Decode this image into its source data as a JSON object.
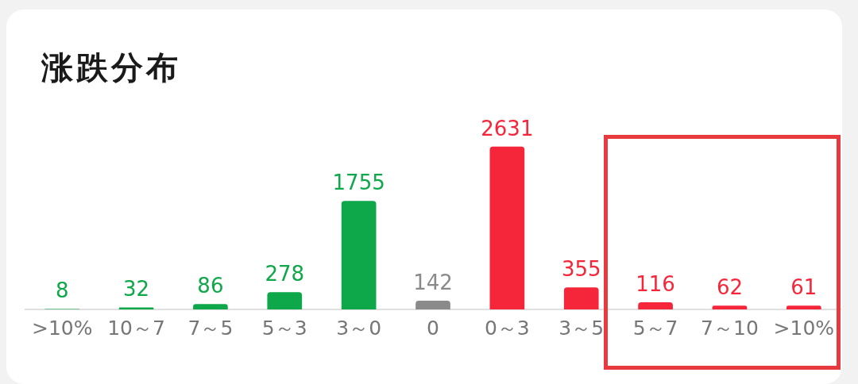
{
  "chart_data": {
    "type": "bar",
    "title": "涨跌分布",
    "categories": [
      ">10%",
      "10～7",
      "7～5",
      "5～3",
      "3～0",
      "0",
      "0～3",
      "3～5",
      "5～7",
      "7～10",
      ">10%"
    ],
    "values": [
      8,
      32,
      86,
      278,
      1755,
      142,
      2631,
      355,
      116,
      62,
      61
    ],
    "colors": [
      "#0ea84a",
      "#0ea84a",
      "#0ea84a",
      "#0ea84a",
      "#0ea84a",
      "#8a8a8a",
      "#f5263a",
      "#f5263a",
      "#f5263a",
      "#f5263a",
      "#f5263a"
    ],
    "data_labels": true,
    "grid": false,
    "legend": false
  }
}
